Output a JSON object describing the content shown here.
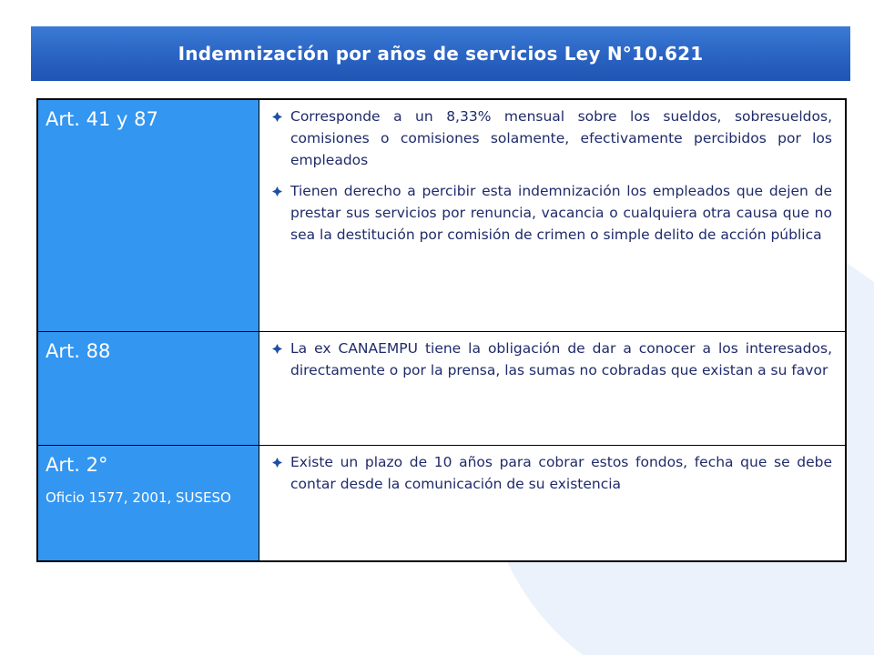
{
  "title": "Indemnización por años de servicios Ley N°10.621",
  "colors": {
    "title_bar": "#2a63c3",
    "article_cell": "#3396f0",
    "text": "#1f2a6a"
  },
  "rows": [
    {
      "article": "Art. 41 y 87",
      "note": "",
      "bullets": [
        "Corresponde a un 8,33% mensual sobre los sueldos, sobresueldos, comisiones o comisiones solamente, efectivamente percibidos por los empleados",
        "Tienen derecho a percibir esta indemnización los empleados que dejen de prestar sus servicios por renuncia, vacancia o cualquiera otra causa que no sea la destitución por comisión de crimen o simple delito de acción pública"
      ]
    },
    {
      "article": "Art. 88",
      "note": "",
      "bullets": [
        "La ex CANAEMPU tiene la obligación de dar a conocer a los interesados, directamente o por la prensa, las sumas no cobradas que existan a su favor"
      ]
    },
    {
      "article": "Art. 2°",
      "note": "Oficio 1577, 2001, SUSESO",
      "bullets": [
        "Existe un plazo de 10 años para cobrar estos fondos, fecha que se debe contar desde la comunicación de su existencia"
      ]
    }
  ]
}
